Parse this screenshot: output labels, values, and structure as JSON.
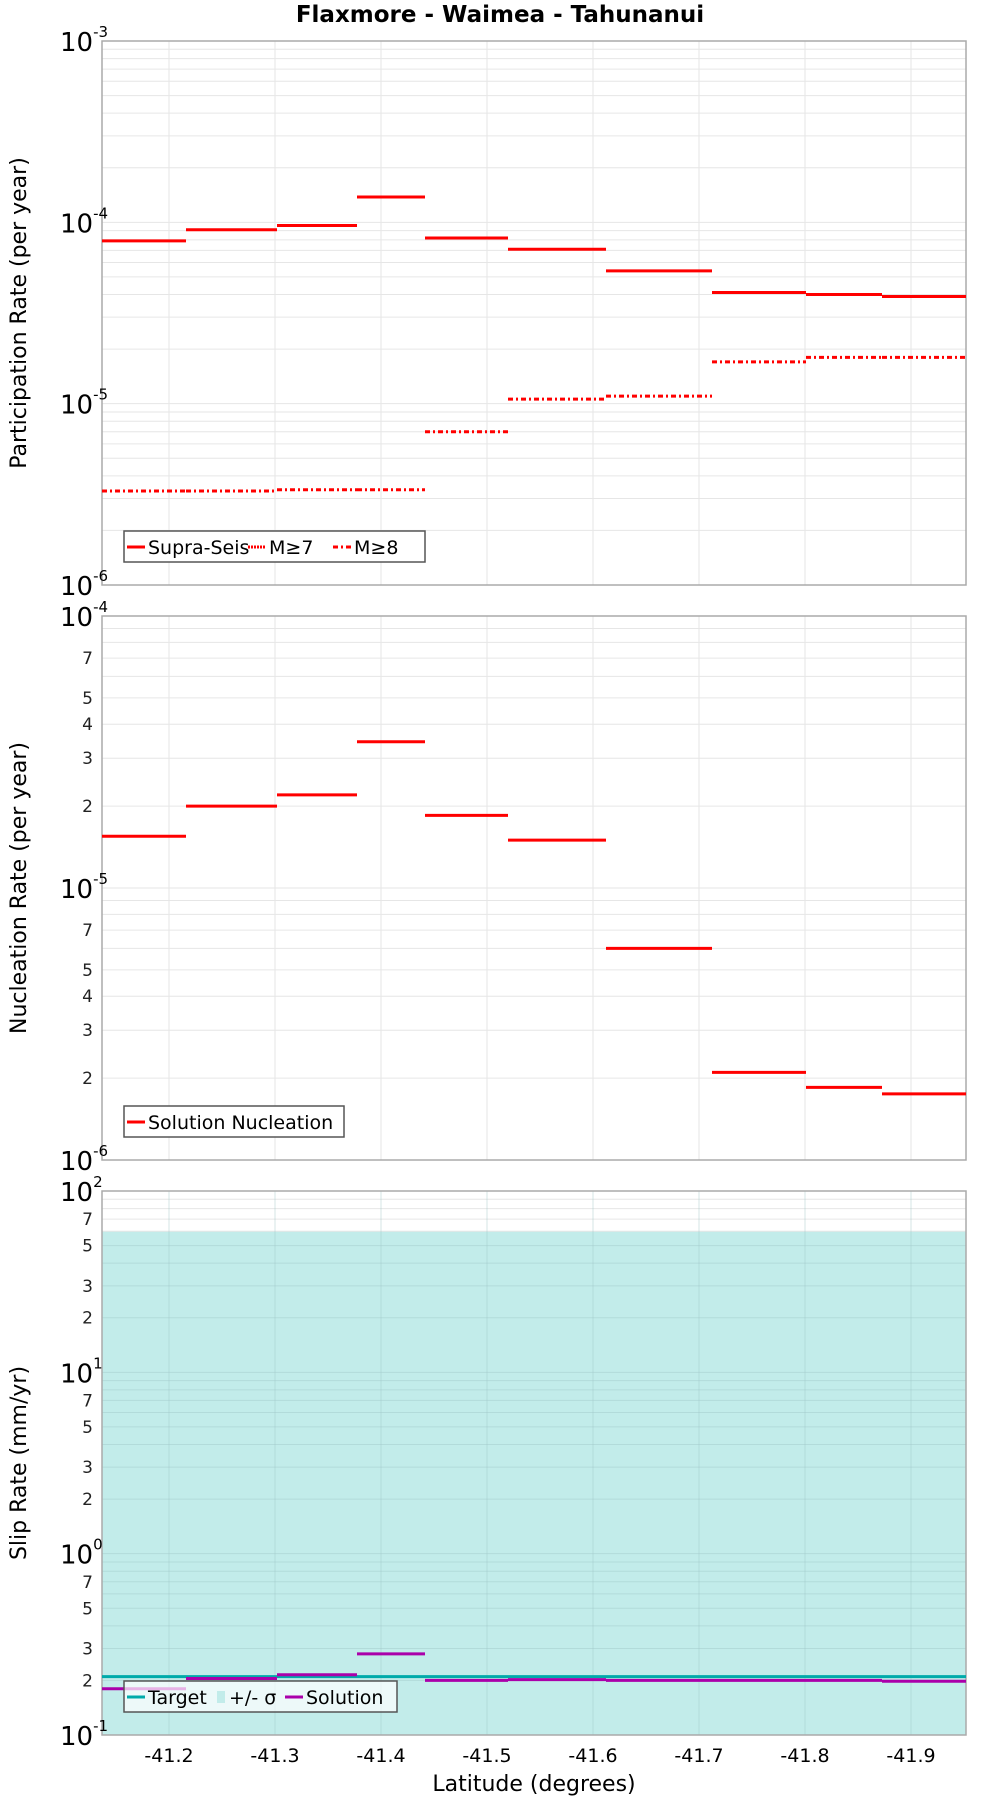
{
  "title": "Flaxmore - Waimea - Tahunanui",
  "chart_data": [
    {
      "type": "line",
      "subtype": "step",
      "title": "Flaxmore - Waimea - Tahunanui",
      "xlabel": "Latitude (degrees)",
      "ylabel": "Participation Rate (per year)",
      "yscale": "log",
      "ylim": [
        1e-06,
        0.001
      ],
      "xlim": [
        -41.137,
        -41.952
      ],
      "y_major_ticks": [
        "10^-3",
        "10^-4",
        "10^-5",
        "10^-6"
      ],
      "legend": [
        "Supra-Seis",
        "M≥7",
        "M≥8"
      ],
      "legend_position": "lower-left",
      "grid": true,
      "segments_lat": [
        [
          -41.137,
          -41.216
        ],
        [
          -41.216,
          -41.302
        ],
        [
          -41.302,
          -41.377
        ],
        [
          -41.377,
          -41.442
        ],
        [
          -41.442,
          -41.52
        ],
        [
          -41.52,
          -41.613
        ],
        [
          -41.613,
          -41.713
        ],
        [
          -41.713,
          -41.801
        ],
        [
          -41.801,
          -41.873
        ],
        [
          -41.873,
          -41.952
        ]
      ],
      "series": [
        {
          "name": "Supra-Seis",
          "color": "#ff0000",
          "style": "solid",
          "values": [
            7.9e-05,
            9.1e-05,
            9.6e-05,
            0.000138,
            8.2e-05,
            7.1e-05,
            5.4e-05,
            4.1e-05,
            4e-05,
            3.9e-05
          ]
        },
        {
          "name": "M≥7",
          "color": "#ff0000",
          "style": "dotted",
          "values": [
            7.9e-05,
            9.1e-05,
            9.6e-05,
            0.000138,
            8.2e-05,
            7.1e-05,
            5.4e-05,
            4.1e-05,
            4e-05,
            3.9e-05
          ]
        },
        {
          "name": "M≥8",
          "color": "#ff0000",
          "style": "dashdot",
          "values": [
            3.3e-06,
            3.3e-06,
            3.35e-06,
            3.35e-06,
            7e-06,
            1.06e-05,
            1.1e-05,
            1.7e-05,
            1.8e-05,
            1.8e-05
          ]
        }
      ]
    },
    {
      "type": "line",
      "subtype": "step",
      "xlabel": "Latitude (degrees)",
      "ylabel": "Nucleation Rate (per year)",
      "yscale": "log",
      "ylim": [
        1e-06,
        0.0001
      ],
      "y_major_ticks": [
        "10^-4",
        "10^-5",
        "10^-6"
      ],
      "y_minor_ticks": [
        "7",
        "5",
        "4",
        "3",
        "2"
      ],
      "legend": [
        "Solution Nucleation"
      ],
      "legend_position": "lower-left",
      "grid": true,
      "series": [
        {
          "name": "Solution Nucleation",
          "color": "#ff0000",
          "style": "solid",
          "values": [
            1.55e-05,
            2e-05,
            2.2e-05,
            3.45e-05,
            1.85e-05,
            1.5e-05,
            6e-06,
            2.1e-06,
            1.85e-06,
            1.75e-06
          ]
        }
      ]
    },
    {
      "type": "line",
      "subtype": "step",
      "xlabel": "Latitude (degrees)",
      "ylabel": "Slip Rate (mm/yr)",
      "yscale": "log",
      "ylim": [
        0.1,
        100
      ],
      "y_major_ticks": [
        "10^2",
        "10^1",
        "10^0",
        "10^-1"
      ],
      "y_minor_ticks": [
        "7",
        "5",
        "3",
        "2"
      ],
      "x_ticks": [
        -41.2,
        -41.3,
        -41.4,
        -41.5,
        -41.6,
        -41.7,
        -41.8,
        -41.9
      ],
      "legend": [
        "Target",
        "+/- σ",
        "Solution"
      ],
      "legend_position": "lower-left",
      "grid": true,
      "series": [
        {
          "name": "Target",
          "color": "#00aaaa",
          "style": "solid",
          "values": [
            0.21,
            0.21,
            0.21,
            0.21,
            0.21,
            0.21,
            0.21,
            0.21,
            0.21,
            0.21
          ]
        },
        {
          "name": "+/- σ",
          "color": "#c2ecea",
          "style": "band",
          "lower": [
            0.1,
            0.1,
            0.1,
            0.1,
            0.1,
            0.1,
            0.1,
            0.1,
            0.1,
            0.1
          ],
          "upper": [
            60,
            60,
            60,
            60,
            60,
            60,
            60,
            60,
            60,
            60
          ]
        },
        {
          "name": "Solution",
          "color": "#aa00aa",
          "style": "solid",
          "values": [
            0.18,
            0.205,
            0.215,
            0.28,
            0.2,
            0.202,
            0.2,
            0.2,
            0.2,
            0.198
          ]
        }
      ]
    }
  ],
  "axes": {
    "x_ticks": [
      "-41.2",
      "-41.3",
      "-41.4",
      "-41.5",
      "-41.6",
      "-41.7",
      "-41.8",
      "-41.9"
    ],
    "xlabel": "Latitude (degrees)",
    "panel1": {
      "ylabel": "Participation Rate (per year)",
      "major": [
        {
          "b": "10",
          "e": "-3"
        },
        {
          "b": "10",
          "e": "-4"
        },
        {
          "b": "10",
          "e": "-5"
        },
        {
          "b": "10",
          "e": "-6"
        }
      ]
    },
    "panel2": {
      "ylabel": "Nucleation Rate (per year)",
      "major": [
        {
          "b": "10",
          "e": "-4"
        },
        {
          "b": "10",
          "e": "-5"
        },
        {
          "b": "10",
          "e": "-6"
        }
      ],
      "minor": [
        "7",
        "5",
        "4",
        "3",
        "2"
      ]
    },
    "panel3": {
      "ylabel": "Slip Rate (mm/yr)",
      "major": [
        {
          "b": "10",
          "e": "2"
        },
        {
          "b": "10",
          "e": "1"
        },
        {
          "b": "10",
          "e": "0"
        },
        {
          "b": "10",
          "e": "-1"
        }
      ],
      "minor": [
        "7",
        "5",
        "3",
        "2"
      ]
    }
  },
  "legends": {
    "panel1": [
      "Supra-Seis",
      "M≥7",
      "M≥8"
    ],
    "panel2": [
      "Solution Nucleation"
    ],
    "panel3": [
      "Target",
      "+/- σ",
      "Solution"
    ]
  },
  "colors": {
    "red": "#ff0000",
    "teal": "#00aaaa",
    "band": "#c2ecea",
    "magenta": "#aa00aa",
    "grid": "#e6e6e6",
    "frame": "#aaaaaa"
  }
}
